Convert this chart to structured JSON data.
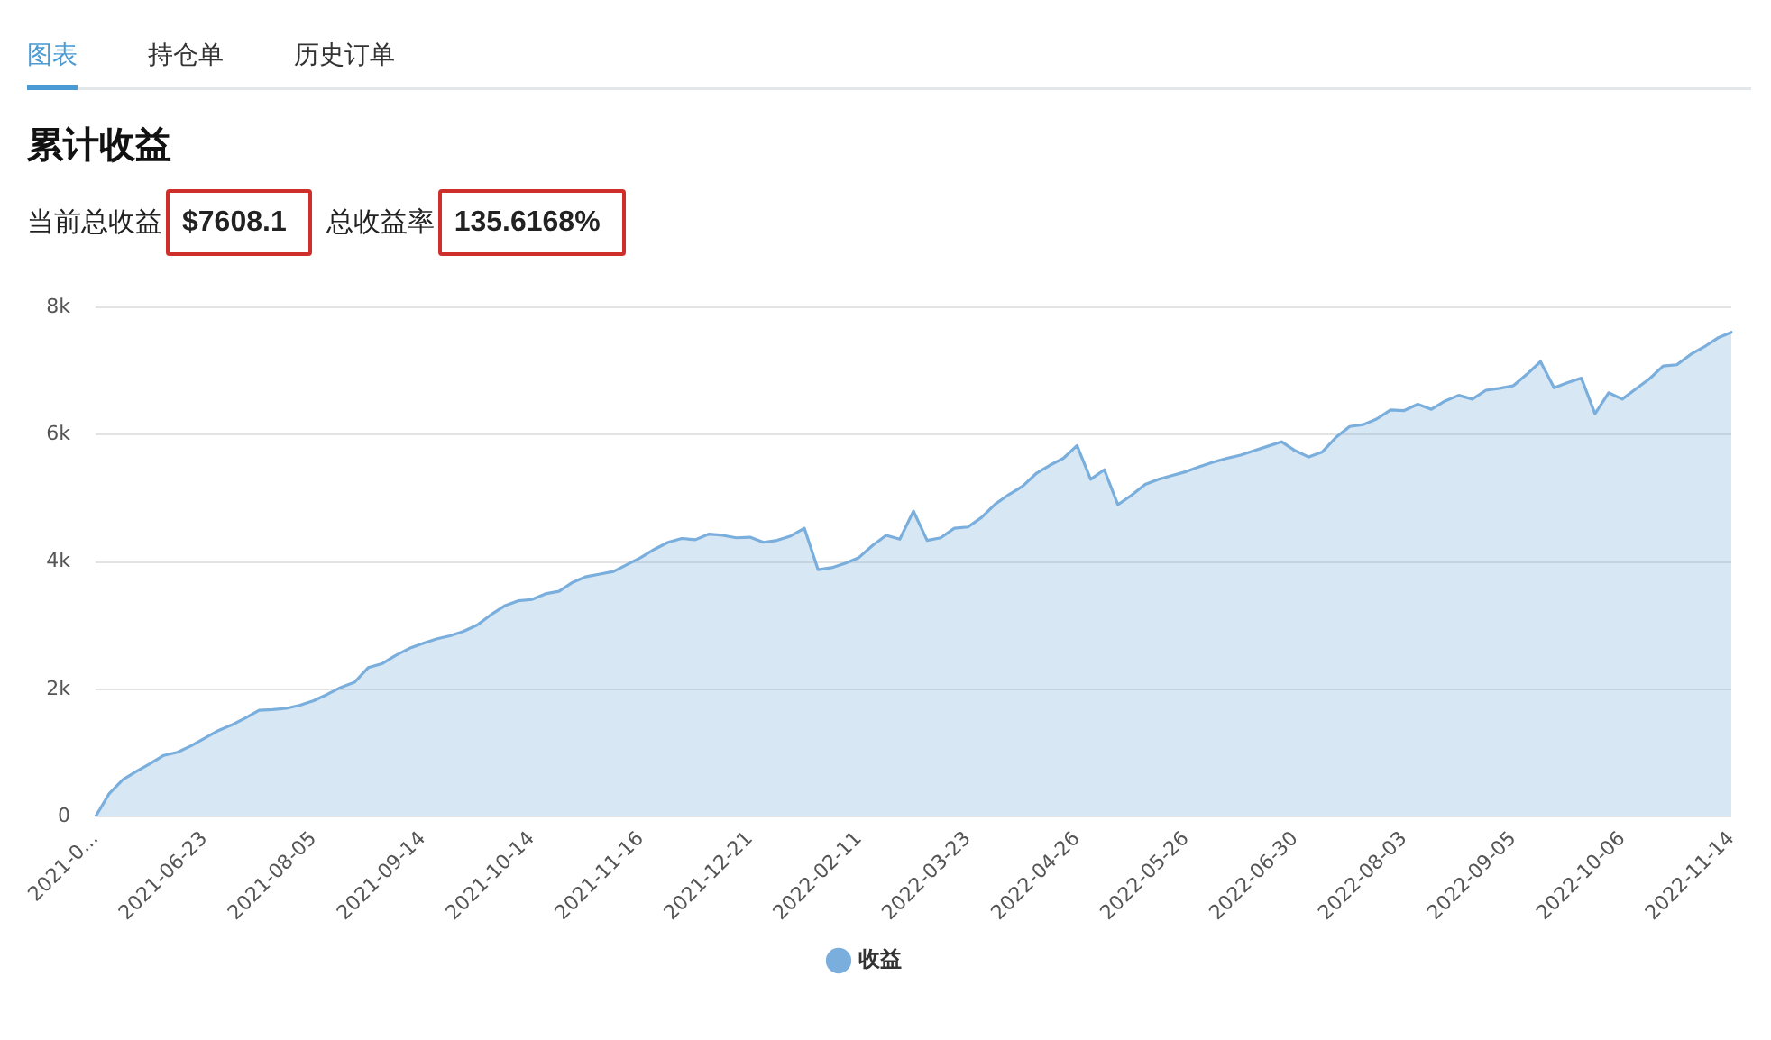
{
  "chart_data": {
    "type": "area",
    "title": "累计收益",
    "annotations": [
      "图表",
      "持仓单",
      "历史订单",
      "当前总收益",
      "$7608.1",
      "总收益率",
      "135.6168%"
    ],
    "categories": [
      "2021-0...",
      null,
      null,
      null,
      null,
      null,
      null,
      null,
      "2021-06-23",
      null,
      null,
      null,
      null,
      null,
      null,
      null,
      "2021-08-05",
      null,
      null,
      null,
      null,
      null,
      null,
      null,
      "2021-09-14",
      null,
      null,
      null,
      null,
      null,
      null,
      null,
      "2021-10-14",
      null,
      null,
      null,
      null,
      null,
      null,
      null,
      "2021-11-16",
      null,
      null,
      null,
      null,
      null,
      null,
      null,
      "2021-12-21",
      null,
      null,
      null,
      null,
      null,
      null,
      null,
      "2022-02-11",
      null,
      null,
      null,
      null,
      null,
      null,
      null,
      "2022-03-23",
      null,
      null,
      null,
      null,
      null,
      null,
      null,
      "2022-04-26",
      null,
      null,
      null,
      null,
      null,
      null,
      null,
      "2022-05-26",
      null,
      null,
      null,
      null,
      null,
      null,
      null,
      "2022-06-30",
      null,
      null,
      null,
      null,
      null,
      null,
      null,
      "2022-08-03",
      null,
      null,
      null,
      null,
      null,
      null,
      null,
      "2022-09-05",
      null,
      null,
      null,
      null,
      null,
      null,
      null,
      "2022-10-06",
      null,
      null,
      null,
      null,
      null,
      null,
      null,
      "2022-11-14"
    ],
    "series": [
      {
        "name": "收益",
        "color": "#7aaedc",
        "values": [
          0,
          360,
          580,
          710,
          830,
          960,
          1010,
          1110,
          1230,
          1350,
          1440,
          1550,
          1670,
          1680,
          1700,
          1750,
          1820,
          1920,
          2030,
          2110,
          2340,
          2400,
          2530,
          2640,
          2720,
          2790,
          2840,
          2910,
          3010,
          3170,
          3310,
          3390,
          3410,
          3500,
          3540,
          3680,
          3770,
          3810,
          3850,
          3960,
          4070,
          4200,
          4310,
          4370,
          4350,
          4440,
          4420,
          4380,
          4390,
          4310,
          4340,
          4410,
          4530,
          3880,
          3910,
          3980,
          4070,
          4260,
          4420,
          4360,
          4800,
          4340,
          4380,
          4530,
          4550,
          4700,
          4910,
          5060,
          5190,
          5390,
          5520,
          5630,
          5830,
          5300,
          5450,
          4900,
          5050,
          5220,
          5300,
          5360,
          5420,
          5500,
          5570,
          5630,
          5680,
          5750,
          5820,
          5890,
          5750,
          5650,
          5730,
          5960,
          6130,
          6160,
          6250,
          6390,
          6380,
          6480,
          6400,
          6530,
          6620,
          6560,
          6700,
          6730,
          6770,
          6950,
          7150,
          6740,
          6820,
          6890,
          6330,
          6660,
          6560,
          6720,
          6880,
          7080,
          7100,
          7260,
          7380,
          7520,
          7610
        ]
      }
    ],
    "ylim": [
      0,
      8000
    ],
    "yticks": [
      0,
      {
        "value": 2000,
        "label": "2k"
      },
      {
        "value": 4000,
        "label": "4k"
      },
      {
        "value": 6000,
        "label": "6k"
      },
      {
        "value": 8000,
        "label": "8k"
      }
    ],
    "grid": "y",
    "legend": "bottom",
    "marker": "none",
    "line_style": "solid"
  }
}
